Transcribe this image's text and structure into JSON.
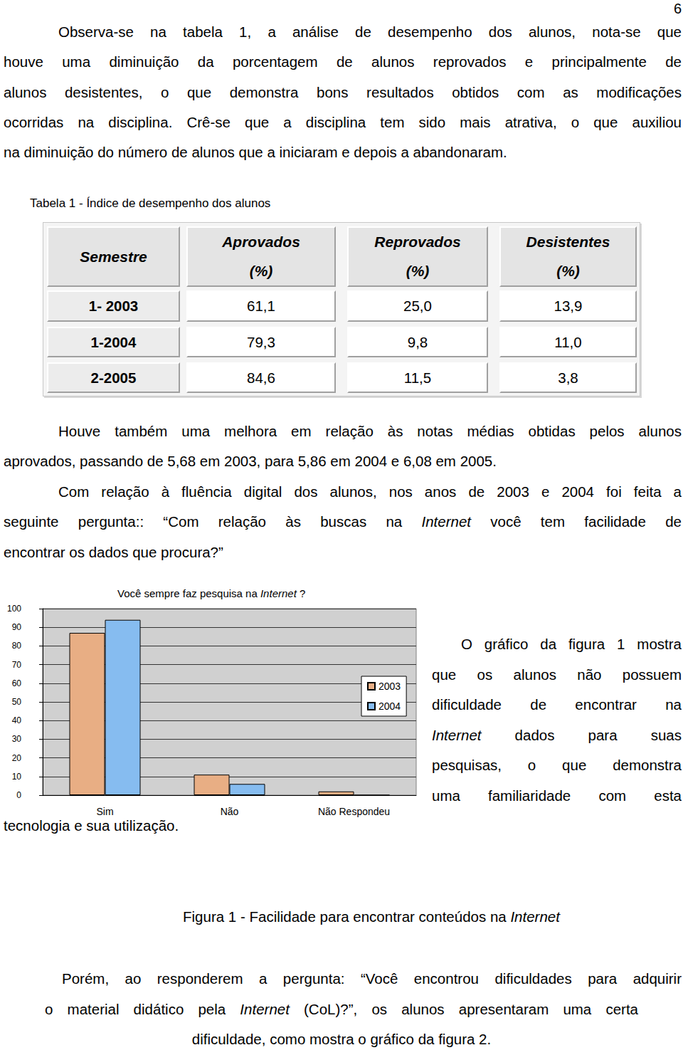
{
  "page_number": "6",
  "paragraph_1": [
    [
      "Observa-se na tabela 1, a análise de desempenho dos alunos, nota-se que"
    ],
    [
      "houve uma diminuição da porcentagem de alunos reprovados e principalmente de"
    ],
    [
      "alunos desistentes, o que demonstra bons resultados obtidos com as modificações"
    ],
    [
      "ocorridas na disciplina. Crê-se que a disciplina tem sido mais atrativa, o que auxiliou"
    ],
    [
      "na diminuição do número de alunos que a iniciaram e depois a abandonaram."
    ]
  ],
  "table": {
    "caption": "Tabela 1 - Índice de desempenho dos alunos",
    "header": [
      [
        "Semestre"
      ],
      [
        "Aprovados",
        "(%)"
      ],
      [
        "Reprovados",
        "(%)"
      ],
      [
        "Desistentes",
        "(%)"
      ]
    ],
    "rows": [
      [
        "1- 2003",
        "61,1",
        "25,0",
        "13,9"
      ],
      [
        "1-2004",
        "79,3",
        "9,8",
        "11,0"
      ],
      [
        "2-2005",
        "84,6",
        "11,5",
        "3,8"
      ]
    ]
  },
  "paragraph_2": [
    [
      "Houve também uma melhora em relação às notas médias obtidas pelos alunos"
    ],
    [
      "aprovados, passando de 5,68 em 2003, para 5,86 em 2004 e 6,08 em 2005."
    ]
  ],
  "paragraph_3": [
    [
      "Com relação à fluência digital dos alunos, nos anos de 2003 e 2004 foi feita a"
    ],
    [
      "seguinte pergunta:: “Com relação às buscas na ",
      {
        "italic": "Internet"
      },
      " você tem facilidade de"
    ],
    [
      "encontrar os dados que procura?”"
    ]
  ],
  "chart_data": {
    "type": "bar",
    "title": [
      "Você sempre faz pesquisa na ",
      {
        "italic": "Internet"
      },
      " ?"
    ],
    "categories": [
      "Sim",
      "Não",
      "Não Respondeu"
    ],
    "series": [
      {
        "name": "2003",
        "color": "#e8ae84",
        "values": [
          87,
          11,
          2
        ]
      },
      {
        "name": "2004",
        "color": "#86bcf0",
        "values": [
          94,
          6,
          0
        ]
      }
    ],
    "ylim": [
      0,
      100
    ],
    "yticks": [
      0,
      10,
      20,
      30,
      40,
      50,
      60,
      70,
      80,
      90,
      100
    ],
    "grid": true,
    "legend": "right"
  },
  "figure_text": [
    [
      "O gráfico da figura 1 mostra"
    ],
    [
      "que os alunos não possuem"
    ],
    [
      "dificuldade de encontrar na"
    ],
    [
      {
        "italic": "Internet"
      },
      " dados para suas"
    ],
    [
      "pesquisas, o que demonstra"
    ],
    [
      "uma familiaridade com esta"
    ],
    [
      "tecnologia e sua utilização."
    ]
  ],
  "caption": [
    "Figura 1 - Facilidade para encontrar conteúdos na ",
    {
      "italic": "Internet"
    }
  ],
  "paragraph_4": [
    [
      "Porém, ao responderem a pergunta: “Você encontrou dificuldades para adquirir"
    ],
    [
      "o material didático pela ",
      {
        "italic": "Internet"
      },
      " (CoL)?”, os alunos apresentaram uma certa"
    ],
    [
      "dificuldade, como mostra o gráfico da figura 2."
    ]
  ]
}
